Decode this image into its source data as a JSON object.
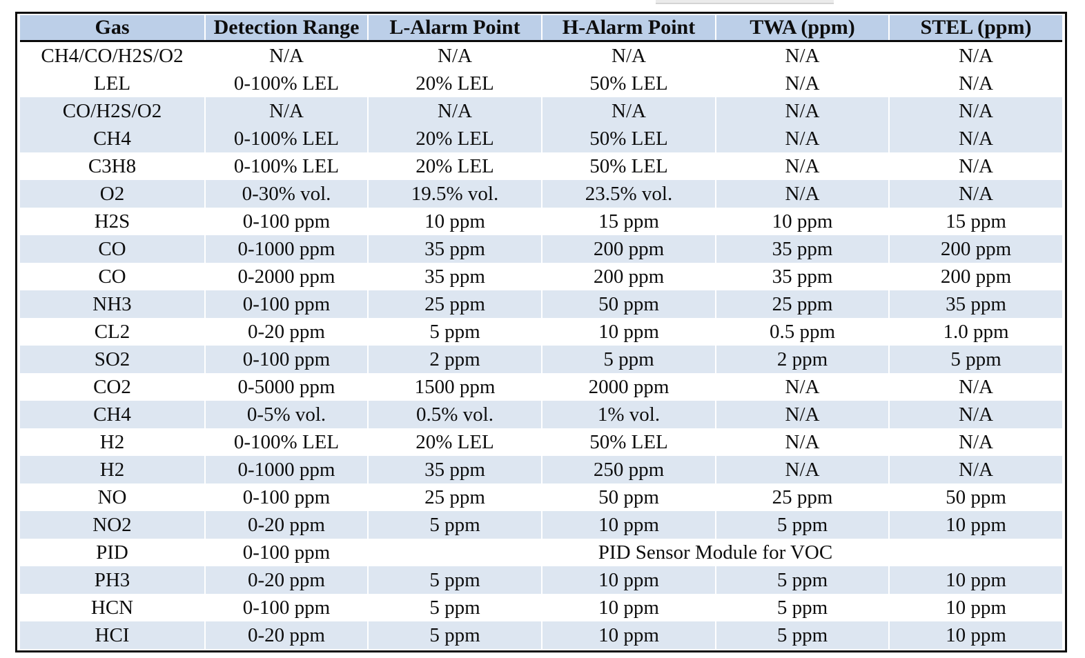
{
  "colors": {
    "header_bg": "#bccfe8",
    "row_shade": "#dde6f1",
    "frame_border": "#0a0a0a",
    "artifact_gray": "#ebebeb"
  },
  "table": {
    "header": [
      "Gas",
      "Detection Range",
      "L-Alarm Point",
      "H-Alarm Point",
      "TWA (ppm)",
      "STEL (ppm)"
    ],
    "rows": [
      {
        "shaded": false,
        "cells": [
          "CH4/CO/H2S/O2",
          "N/A",
          "N/A",
          "N/A",
          "N/A",
          "N/A"
        ]
      },
      {
        "shaded": false,
        "cells": [
          "LEL",
          "0-100% LEL",
          "20% LEL",
          "50% LEL",
          "N/A",
          "N/A"
        ]
      },
      {
        "shaded": true,
        "cells": [
          "CO/H2S/O2",
          "N/A",
          "N/A",
          "N/A",
          "N/A",
          "N/A"
        ]
      },
      {
        "shaded": true,
        "cells": [
          "CH4",
          "0-100% LEL",
          "20% LEL",
          "50% LEL",
          "N/A",
          "N/A"
        ]
      },
      {
        "shaded": false,
        "cells": [
          "C3H8",
          "0-100% LEL",
          "20% LEL",
          "50% LEL",
          "N/A",
          "N/A"
        ]
      },
      {
        "shaded": true,
        "cells": [
          "O2",
          "0-30% vol.",
          "19.5% vol.",
          "23.5% vol.",
          "N/A",
          "N/A"
        ]
      },
      {
        "shaded": false,
        "cells": [
          "H2S",
          "0-100 ppm",
          "10 ppm",
          "15 ppm",
          "10 ppm",
          "15 ppm"
        ]
      },
      {
        "shaded": true,
        "cells": [
          "CO",
          "0-1000 ppm",
          "35 ppm",
          "200 ppm",
          "35 ppm",
          "200 ppm"
        ]
      },
      {
        "shaded": false,
        "cells": [
          "CO",
          "0-2000 ppm",
          "35 ppm",
          "200 ppm",
          "35 ppm",
          "200 ppm"
        ]
      },
      {
        "shaded": true,
        "cells": [
          "NH3",
          "0-100 ppm",
          "25 ppm",
          "50 ppm",
          "25 ppm",
          "35 ppm"
        ]
      },
      {
        "shaded": false,
        "cells": [
          "CL2",
          "0-20 ppm",
          "5 ppm",
          "10 ppm",
          "0.5 ppm",
          "1.0 ppm"
        ]
      },
      {
        "shaded": true,
        "cells": [
          "SO2",
          "0-100 ppm",
          "2 ppm",
          "5 ppm",
          "2 ppm",
          "5 ppm"
        ]
      },
      {
        "shaded": false,
        "cells": [
          "CO2",
          "0-5000 ppm",
          "1500 ppm",
          "2000 ppm",
          "N/A",
          "N/A"
        ]
      },
      {
        "shaded": true,
        "cells": [
          "CH4",
          "0-5% vol.",
          "0.5% vol.",
          "1% vol.",
          "N/A",
          "N/A"
        ]
      },
      {
        "shaded": false,
        "cells": [
          "H2",
          "0-100% LEL",
          "20% LEL",
          "50% LEL",
          "N/A",
          "N/A"
        ]
      },
      {
        "shaded": true,
        "cells": [
          "H2",
          "0-1000 ppm",
          "35 ppm",
          "250 ppm",
          "N/A",
          "N/A"
        ]
      },
      {
        "shaded": false,
        "cells": [
          "NO",
          "0-100 ppm",
          "25 ppm",
          "50 ppm",
          "25 ppm",
          "50 ppm"
        ]
      },
      {
        "shaded": true,
        "cells": [
          "NO2",
          "0-20 ppm",
          "5 ppm",
          "10 ppm",
          "5 ppm",
          "10 ppm"
        ]
      },
      {
        "shaded": false,
        "cells": [
          "PID",
          "0-100 ppm"
        ],
        "merged_note": "PID Sensor Module for VOC",
        "merged_colspan": 4
      },
      {
        "shaded": true,
        "cells": [
          "PH3",
          "0-20 ppm",
          "5 ppm",
          "10 ppm",
          "5 ppm",
          "10 ppm"
        ]
      },
      {
        "shaded": false,
        "cells": [
          "HCN",
          "0-100 ppm",
          "5 ppm",
          "10 ppm",
          "5 ppm",
          "10 ppm"
        ]
      },
      {
        "shaded": true,
        "cells": [
          "HCI",
          "0-20 ppm",
          "5 ppm",
          "10 ppm",
          "5 ppm",
          "10 ppm"
        ]
      }
    ]
  }
}
